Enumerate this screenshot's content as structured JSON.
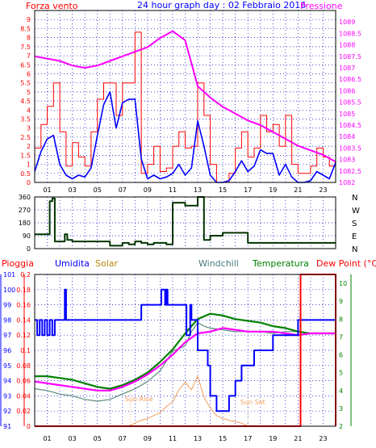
{
  "colors": {
    "wind": "#ff0000",
    "wind_avg": "#0000ff",
    "pressure": "#ff00ff",
    "direction": "#003300",
    "rain": "#ff0000",
    "humidity": "#0000ff",
    "solar": "#f39c5a",
    "windchill": "#5a8a7a",
    "temperature": "#008000",
    "dew_point": "#ff00ff",
    "grid": "#0000c8",
    "frame": "#000000",
    "axis_red": "#ff0000",
    "axis_blue": "#0000ff",
    "axis_green": "#008000",
    "background": "#ffffff"
  },
  "header": {
    "left": "Forza vento",
    "center": "24 hour graph day : 02 Febbraio 2016",
    "right": "Pressione"
  },
  "mid_header": {
    "pioggia": "Pioggia",
    "umidita": "Umidita",
    "solar": "Solar",
    "windchill": "Windchill",
    "temperatura": "Temperatura",
    "dew_point": "Dew Point (°C)"
  },
  "hour_labels": [
    "01",
    "03",
    "05",
    "07",
    "09",
    "11",
    "13",
    "15",
    "17",
    "19",
    "21",
    "23"
  ],
  "compass": [
    "N",
    "W",
    "S",
    "E",
    "N"
  ],
  "annotations": {
    "sun_rise": "Sun Rise",
    "sun_set": "Sun Set"
  },
  "chart_data": [
    {
      "type": "line",
      "title": "24 hour graph day : 02 Febbraio 2016",
      "x_hours": [
        0,
        24
      ],
      "ylim_left": [
        0,
        9.5
      ],
      "yticks_left": [
        "0",
        "0.5",
        "1",
        "1.5",
        "2",
        "2.5",
        "3",
        "3.5",
        "4",
        "4.5",
        "5",
        "5.5",
        "6",
        "6.5",
        "7",
        "7.5",
        "8",
        "8.5",
        "9"
      ],
      "ylim_right": [
        1082,
        1089.5
      ],
      "yticks_right": [
        "1082",
        "1082.5",
        "1083",
        "1083.5",
        "1084",
        "1084.5",
        "1085",
        "1085.5",
        "1086",
        "1086.5",
        "1087",
        "1087.5",
        "1088",
        "1088.5",
        "1089"
      ],
      "series": [
        {
          "name": "Forza vento",
          "axis": "left",
          "x": [
            0,
            0.5,
            1,
            1.5,
            2,
            2.5,
            3,
            3.5,
            4,
            4.5,
            5,
            5.5,
            6,
            6.5,
            7,
            7.5,
            8,
            8.5,
            9,
            9.5,
            10,
            10.5,
            11,
            11.5,
            12,
            12.5,
            13,
            13.5,
            14,
            14.5,
            15,
            15.5,
            16,
            16.5,
            17,
            17.5,
            18,
            18.5,
            19,
            19.5,
            20,
            20.5,
            21,
            21.5,
            22,
            22.5,
            23,
            23.5,
            24
          ],
          "values": [
            1.9,
            3.2,
            4.2,
            5.5,
            2.8,
            0.9,
            2.2,
            1.4,
            0.9,
            2.8,
            4.6,
            5.5,
            5.5,
            3.7,
            5.5,
            5.5,
            8.3,
            0.5,
            1.0,
            2.0,
            0.6,
            0.8,
            2.0,
            2.8,
            1.9,
            2.0,
            5.5,
            3.7,
            1.0,
            0.0,
            0.0,
            0.5,
            1.9,
            2.8,
            1.4,
            1.9,
            3.7,
            2.8,
            3.2,
            2.0,
            3.7,
            1.0,
            0.5,
            0.5,
            0.9,
            1.9,
            1.4,
            0.9,
            2.8
          ]
        },
        {
          "name": "wind average",
          "axis": "left",
          "x": [
            0,
            0.5,
            1,
            1.5,
            2,
            2.5,
            3,
            3.5,
            4,
            4.5,
            5,
            5.5,
            6,
            6.5,
            7,
            7.5,
            8,
            8.5,
            9,
            9.5,
            10,
            10.5,
            11,
            11.5,
            12,
            12.5,
            13,
            13.5,
            14,
            14.5,
            15,
            15.5,
            16,
            16.5,
            17,
            17.5,
            18,
            18.5,
            19,
            19.5,
            20,
            20.5,
            21,
            21.5,
            22,
            22.5,
            23,
            23.5,
            24
          ],
          "values": [
            0.6,
            1.7,
            2.4,
            2.6,
            1.0,
            0.4,
            0.2,
            0.4,
            0.3,
            0.8,
            2.6,
            4.3,
            5.0,
            3.0,
            4.4,
            4.6,
            4.6,
            1.3,
            0.2,
            0.4,
            0.2,
            0.3,
            0.5,
            1.0,
            0.4,
            0.8,
            3.4,
            2.0,
            0.4,
            0.0,
            0.0,
            0.1,
            0.6,
            1.2,
            0.6,
            0.9,
            1.8,
            1.6,
            1.6,
            0.4,
            1.0,
            0.3,
            0.0,
            0.0,
            0.1,
            0.6,
            0.4,
            0.2,
            1.1
          ]
        },
        {
          "name": "Pressione",
          "axis": "right",
          "x": [
            0,
            1,
            2,
            3,
            4,
            5,
            6,
            7,
            8,
            9,
            10,
            11,
            12,
            12.5,
            13,
            14,
            15,
            16,
            17,
            18,
            19,
            20,
            21,
            22,
            23,
            24
          ],
          "values": [
            1087.5,
            1087.4,
            1087.3,
            1087.1,
            1087.0,
            1087.1,
            1087.3,
            1087.5,
            1087.7,
            1087.9,
            1088.3,
            1088.6,
            1088.2,
            1087.2,
            1086.2,
            1085.7,
            1085.3,
            1085.0,
            1084.7,
            1084.5,
            1084.2,
            1083.9,
            1083.6,
            1083.4,
            1083.2,
            1082.9
          ]
        }
      ]
    },
    {
      "type": "line",
      "title": "",
      "x_hours": [
        0,
        24
      ],
      "ylim": [
        0,
        360
      ],
      "yticks": [
        "0",
        "90",
        "180",
        "270",
        "360"
      ],
      "series": [
        {
          "name": "direction",
          "x": [
            0,
            1,
            1.2,
            1.4,
            1.6,
            1.8,
            2,
            2.2,
            2.4,
            2.6,
            3,
            5,
            6,
            7,
            7.5,
            8,
            8.5,
            9,
            9.5,
            10,
            10.5,
            11,
            11.5,
            12,
            12.5,
            13,
            13.5,
            14,
            15,
            16,
            16.5,
            17,
            18,
            24
          ],
          "values": [
            100,
            100,
            330,
            350,
            50,
            50,
            50,
            50,
            100,
            60,
            50,
            50,
            20,
            40,
            30,
            50,
            40,
            30,
            40,
            40,
            30,
            320,
            320,
            300,
            300,
            360,
            60,
            90,
            110,
            110,
            110,
            40,
            40,
            40
          ]
        }
      ]
    },
    {
      "type": "line",
      "title": "",
      "x_hours": [
        0,
        24
      ],
      "ylim_rain": [
        0,
        0.2
      ],
      "yticks_rain": [
        "0",
        "0.02",
        "0.04",
        "0.06",
        "0.08",
        "0.1",
        "0.12",
        "0.14",
        "0.16",
        "0.18",
        "0.2"
      ],
      "ylim_humidity": [
        91,
        101
      ],
      "yticks_humidity": [
        "91",
        "92",
        "93",
        "94",
        "95",
        "96",
        "97",
        "98",
        "99",
        "100",
        "101"
      ],
      "ylim_temp": [
        2,
        10.5
      ],
      "yticks_temp": [
        "2",
        "3",
        "4",
        "5",
        "6",
        "7",
        "8",
        "9",
        "10"
      ],
      "series": [
        {
          "name": "Pioggia",
          "x": [
            0,
            21,
            21,
            21.2,
            21.2,
            24,
            24
          ],
          "values": [
            0,
            0,
            0,
            0,
            0.2,
            0.2,
            0
          ]
        },
        {
          "name": "Umidita",
          "x": [
            0,
            0.2,
            0.4,
            0.6,
            0.8,
            1,
            1.2,
            1.4,
            1.6,
            2,
            2.3,
            2.4,
            2.5,
            2.6,
            3,
            8.3,
            8.5,
            8.6,
            9,
            10,
            10.1,
            10.4,
            10.5,
            10.6,
            12,
            12.1,
            12.4,
            12.5,
            13,
            13.8,
            14,
            14.5,
            15,
            15.5,
            15.5,
            16,
            16.5,
            17,
            17.5,
            18,
            19,
            20,
            21,
            22,
            24
          ],
          "values": [
            98,
            97,
            98,
            97,
            98,
            97,
            98,
            97,
            98,
            98,
            98,
            100,
            98,
            98,
            98,
            98,
            99,
            99,
            99,
            99,
            100,
            99,
            100,
            99,
            99,
            97,
            99,
            98,
            96,
            95,
            93,
            92,
            92,
            92,
            93,
            94,
            95,
            95,
            96,
            96,
            97,
            97,
            98,
            98,
            99
          ]
        },
        {
          "name": "Solar",
          "x": [
            7.5,
            8,
            8.5,
            9,
            9.5,
            10,
            10.5,
            11,
            11.5,
            12,
            12.5,
            13,
            13.5,
            14,
            14.5,
            15,
            15.5,
            16,
            16.5,
            17
          ],
          "values": [
            0.0,
            0.2,
            0.4,
            0.5,
            0.7,
            0.9,
            1.3,
            1.6,
            2.4,
            2.9,
            2.4,
            3.3,
            1.9,
            1.2,
            0.7,
            0.5,
            0.4,
            0.3,
            0.2,
            0.0
          ]
        },
        {
          "name": "Windchill",
          "x": [
            0,
            1,
            2,
            3,
            4,
            5,
            6,
            7,
            8,
            9,
            10,
            11,
            12,
            12.5,
            13,
            13.5,
            14,
            15,
            16,
            17,
            18,
            19,
            20,
            21,
            22,
            23,
            24
          ],
          "values": [
            4.1,
            4.0,
            3.8,
            3.7,
            3.5,
            3.4,
            3.5,
            3.8,
            4.1,
            4.5,
            5.1,
            6.2,
            6.5,
            7.3,
            7.8,
            7.6,
            7.5,
            7.4,
            7.3,
            7.3,
            7.3,
            7.2,
            7.3,
            7.3,
            7.2,
            7.2,
            7.2
          ]
        },
        {
          "name": "Temperatura",
          "x": [
            0,
            1,
            2,
            3,
            4,
            5,
            6,
            7,
            8,
            9,
            10,
            11,
            12,
            13,
            14,
            15,
            16,
            17,
            18,
            19,
            20,
            21,
            22,
            23,
            24
          ],
          "values": [
            4.8,
            4.8,
            4.7,
            4.6,
            4.4,
            4.2,
            4.1,
            4.3,
            4.6,
            5.0,
            5.6,
            6.3,
            7.2,
            8.0,
            8.3,
            8.2,
            8.0,
            7.9,
            7.8,
            7.6,
            7.5,
            7.3,
            7.2,
            7.2,
            7.2
          ]
        },
        {
          "name": "Dew Point (°C)",
          "x": [
            0,
            1,
            2,
            3,
            4,
            5,
            6,
            7,
            8,
            9,
            10,
            11,
            12,
            13,
            14,
            15,
            16,
            17,
            18,
            19,
            20,
            21,
            22,
            23,
            24
          ],
          "values": [
            4.5,
            4.4,
            4.3,
            4.2,
            4.1,
            4.0,
            4.0,
            4.2,
            4.5,
            4.9,
            5.4,
            6.0,
            6.7,
            7.2,
            7.3,
            7.5,
            7.4,
            7.3,
            7.3,
            7.3,
            7.2,
            7.1,
            7.2,
            7.2,
            7.2
          ]
        }
      ]
    }
  ]
}
